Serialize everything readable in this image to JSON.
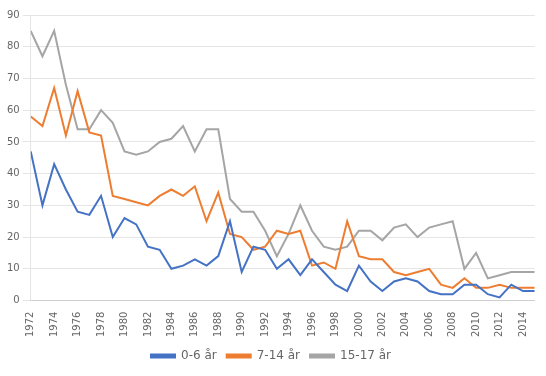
{
  "chart_data": {
    "type": "line",
    "x": [
      1972,
      1973,
      1974,
      1975,
      1976,
      1977,
      1978,
      1979,
      1980,
      1981,
      1982,
      1983,
      1984,
      1985,
      1986,
      1987,
      1988,
      1989,
      1990,
      1991,
      1992,
      1993,
      1994,
      1995,
      1996,
      1997,
      1998,
      1999,
      2000,
      2001,
      2002,
      2003,
      2004,
      2005,
      2006,
      2007,
      2008,
      2009,
      2010,
      2011,
      2012,
      2013,
      2014,
      2015
    ],
    "series": [
      {
        "name": "0-6 år",
        "color": "#4472C4",
        "values": [
          47,
          30,
          43,
          35,
          28,
          27,
          33,
          20,
          26,
          24,
          17,
          16,
          10,
          11,
          13,
          11,
          14,
          25,
          9,
          17,
          16,
          10,
          13,
          8,
          13,
          9,
          5,
          3,
          11,
          6,
          3,
          6,
          7,
          6,
          3,
          2,
          2,
          5,
          5,
          2,
          1,
          5,
          3,
          3
        ]
      },
      {
        "name": "7-14 år",
        "color": "#ED7D31",
        "values": [
          58,
          55,
          67,
          52,
          66,
          53,
          52,
          33,
          32,
          31,
          30,
          33,
          35,
          33,
          36,
          25,
          34,
          21,
          20,
          16,
          17,
          22,
          21,
          22,
          11,
          12,
          10,
          25,
          14,
          13,
          13,
          9,
          8,
          9,
          10,
          5,
          4,
          7,
          4,
          4,
          5,
          4,
          4,
          4
        ]
      },
      {
        "name": "15-17 år",
        "color": "#A5A5A5",
        "values": [
          85,
          77,
          85,
          68,
          54,
          54,
          60,
          56,
          47,
          46,
          47,
          50,
          51,
          55,
          47,
          54,
          54,
          32,
          28,
          28,
          22,
          14,
          21,
          30,
          22,
          17,
          16,
          17,
          22,
          22,
          19,
          23,
          24,
          20,
          23,
          24,
          25,
          10,
          15,
          7,
          8,
          9,
          9,
          9
        ]
      }
    ],
    "xlim": [
      1972,
      2015
    ],
    "xticks": [
      1972,
      1974,
      1976,
      1978,
      1980,
      1982,
      1984,
      1986,
      1988,
      1990,
      1992,
      1994,
      1996,
      1998,
      2000,
      2002,
      2004,
      2006,
      2008,
      2010,
      2012,
      2014
    ],
    "ylim": [
      0,
      90
    ],
    "yticks": [
      0,
      10,
      20,
      30,
      40,
      50,
      60,
      70,
      80,
      90
    ],
    "grid": "y",
    "legend": "bottom"
  }
}
